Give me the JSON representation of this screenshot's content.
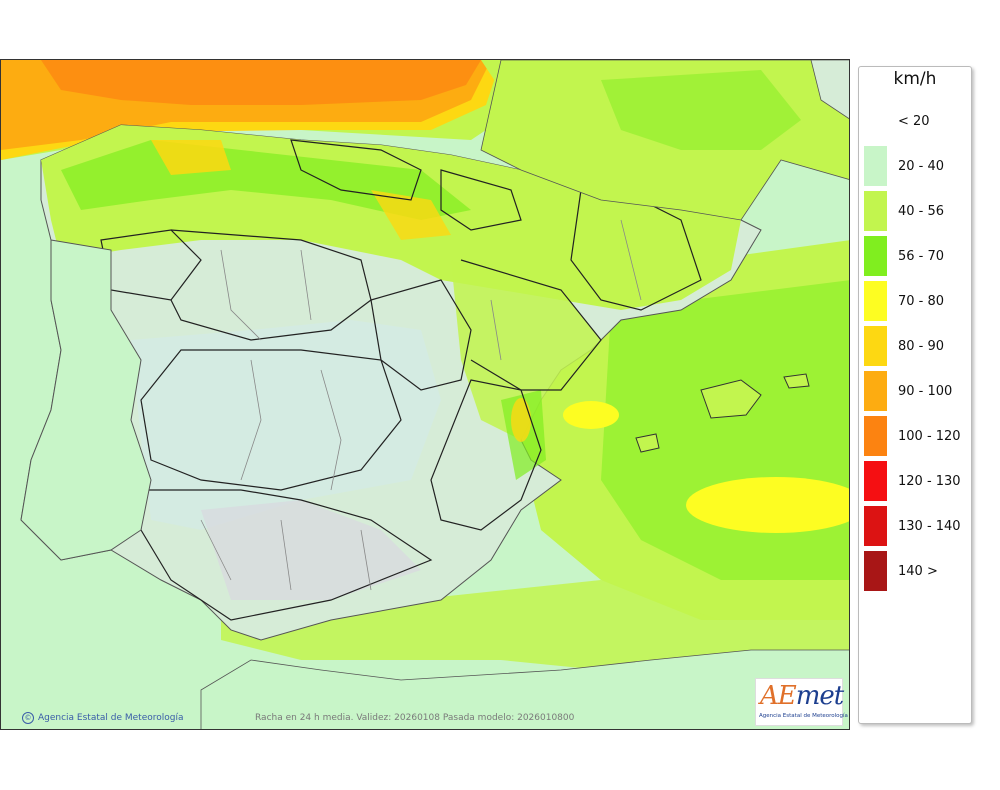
{
  "legend": {
    "unit": "km/h",
    "items": [
      {
        "label": "< 20",
        "color": "#ffffff"
      },
      {
        "label": "20 - 40",
        "color": "#c8f5c8"
      },
      {
        "label": "40 - 56",
        "color": "#c2f54e"
      },
      {
        "label": "56 - 70",
        "color": "#80ee1f"
      },
      {
        "label": "70 - 80",
        "color": "#fdfd22"
      },
      {
        "label": "80 - 90",
        "color": "#fdd812"
      },
      {
        "label": "90 - 100",
        "color": "#fdac11"
      },
      {
        "label": "100 - 120",
        "color": "#fc8311"
      },
      {
        "label": "120 - 130",
        "color": "#f50f12"
      },
      {
        "label": "130 - 140",
        "color": "#dc1313"
      },
      {
        "label": "140 >",
        "color": "#a81616"
      }
    ]
  },
  "credit": "Agencia Estatal de Meteorología",
  "caption": "Racha en 24 h media. Validez: 20260108 Pasada modelo: 2026010800",
  "logo": {
    "name": "AEmet",
    "subtitle": "Agencia Estatal de Meteorología"
  }
}
